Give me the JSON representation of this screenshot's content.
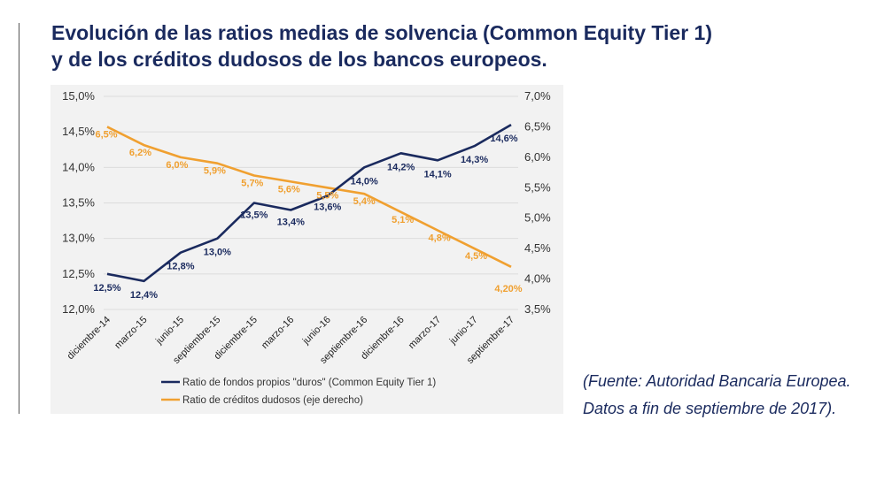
{
  "title": {
    "line1": "Evolución de las ratios medias de solvencia (Common Equity Tier 1)",
    "line2": "y de los créditos dudosos de los bancos europeos."
  },
  "source": {
    "line1": "(Fuente: Autoridad Bancaria Europea.",
    "line2": "Datos a fin de septiembre de 2017)."
  },
  "colors": {
    "navy": "#1a2a5e",
    "orange": "#f0a030",
    "panel": "#f2f2f2"
  },
  "chart_data": {
    "type": "line",
    "categories": [
      "diciembre-14",
      "marzo-15",
      "junio-15",
      "septiembre-15",
      "diciembre-15",
      "marzo-16",
      "junio-16",
      "septiembre-16",
      "diciembre-16",
      "marzo-17",
      "junio-17",
      "septiembre-17"
    ],
    "series": [
      {
        "name": "Ratio de fondos propios \"duros\" (Common Equity Tier 1)",
        "axis": "left",
        "color": "#1a2a5e",
        "values": [
          12.5,
          12.4,
          12.8,
          13.0,
          13.5,
          13.4,
          13.6,
          14.0,
          14.2,
          14.1,
          14.3,
          14.6
        ],
        "labels": [
          "12,5%",
          "12,4%",
          "12,8%",
          "13,0%",
          "13,5%",
          "13,4%",
          "13,6%",
          "14,0%",
          "14,2%",
          "14,1%",
          "14,3%",
          "14,6%"
        ]
      },
      {
        "name": "Ratio de créditos dudosos (eje derecho)",
        "axis": "right",
        "color": "#f0a030",
        "values": [
          6.5,
          6.2,
          6.0,
          5.9,
          5.7,
          5.6,
          5.5,
          5.4,
          5.1,
          4.8,
          4.5,
          4.2
        ],
        "labels": [
          "6,5%",
          "6,2%",
          "6,0%",
          "5,9%",
          "5,7%",
          "5,6%",
          "5,5%",
          "5,4%",
          "5,1%",
          "4,8%",
          "4,5%",
          "4,20%"
        ]
      }
    ],
    "y_left": {
      "ylim": [
        12.0,
        15.0
      ],
      "ticks": [
        12.0,
        12.5,
        13.0,
        13.5,
        14.0,
        14.5,
        15.0
      ],
      "tick_labels": [
        "12,0%",
        "12,5%",
        "13,0%",
        "13,5%",
        "14,0%",
        "14,5%",
        "15,0%"
      ]
    },
    "y_right": {
      "ylim": [
        3.5,
        7.0
      ],
      "ticks": [
        3.5,
        4.0,
        4.5,
        5.0,
        5.5,
        6.0,
        6.5,
        7.0
      ],
      "tick_labels": [
        "3,5%",
        "4,0%",
        "4,5%",
        "5,0%",
        "5,5%",
        "6,0%",
        "6,5%",
        "7,0%"
      ]
    },
    "grid": true,
    "legend_position": "bottom"
  }
}
